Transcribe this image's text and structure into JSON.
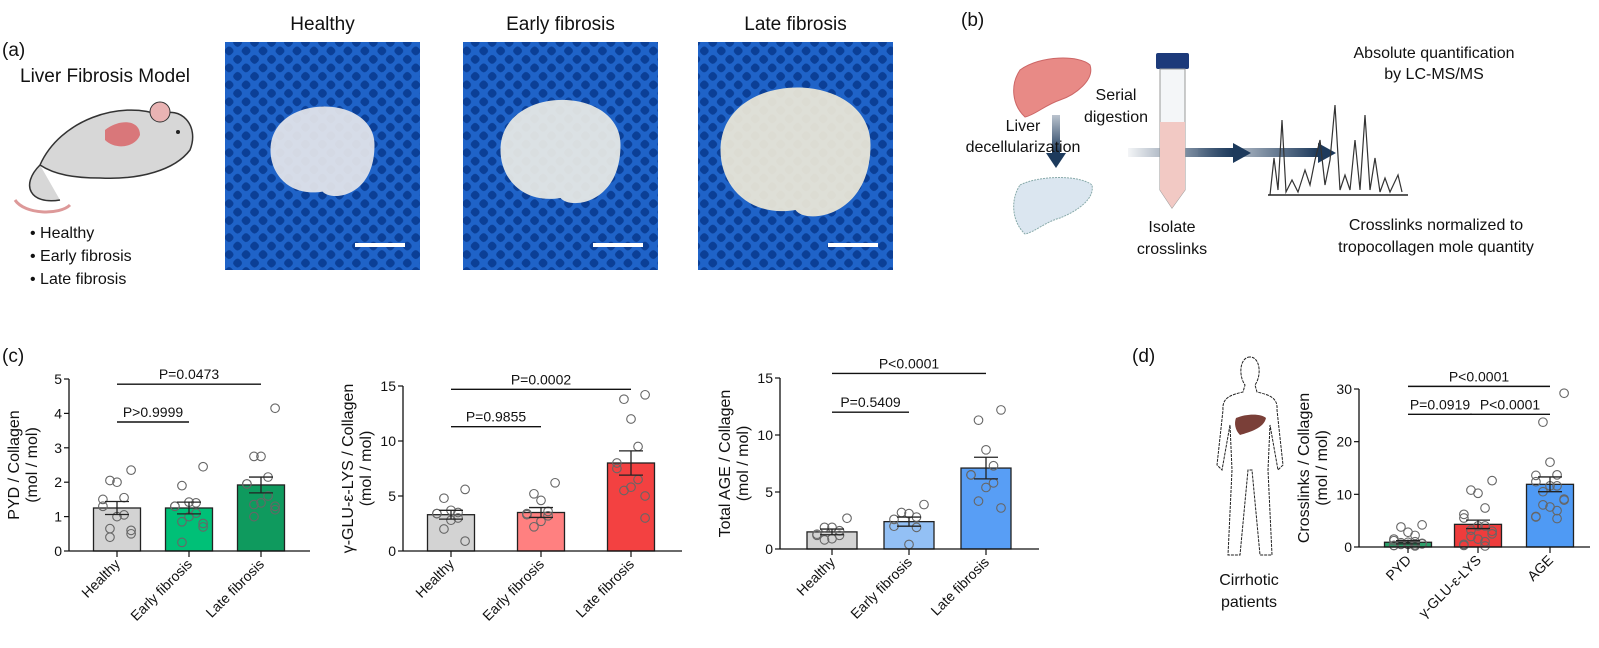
{
  "panel_a": {
    "label": "(a)",
    "model_title": "Liver Fibrosis Model",
    "bullets": [
      "• Healthy",
      "• Early fibrosis",
      "• Late fibrosis"
    ],
    "photo_titles": [
      "Healthy",
      "Early fibrosis",
      "Late fibrosis"
    ]
  },
  "panel_b": {
    "label": "(b)",
    "step1": [
      "Liver",
      "decellularization"
    ],
    "step2": [
      "Serial",
      "digestion"
    ],
    "step3": [
      "Isolate",
      "crosslinks"
    ],
    "step4_top": [
      "Absolute quantification",
      "by LC-MS/MS"
    ],
    "step4_bottom": [
      "Crosslinks normalized to",
      "tropocollagen mole quantity"
    ]
  },
  "panel_c": {
    "label": "(c)"
  },
  "panel_d": {
    "label": "(d)",
    "caption": [
      "Cirrhotic",
      "patients"
    ]
  },
  "chart_data": [
    {
      "type": "bar",
      "ylabel": [
        "PYD / Collagen",
        "(mol / mol)"
      ],
      "categories": [
        "Healthy",
        "Early fibrosis",
        "Late fibrosis"
      ],
      "ylim": [
        0,
        5
      ],
      "yticks": [
        0,
        1,
        2,
        3,
        4,
        5
      ],
      "colors": [
        "#d3d3d3",
        "#00c077",
        "#0f9a5e"
      ],
      "means": [
        1.25,
        1.25,
        1.92
      ],
      "sem": [
        0.19,
        0.17,
        0.23
      ],
      "points": [
        [
          2.35,
          2.05,
          2.0,
          1.55,
          1.5,
          1.3,
          1.05,
          1.0,
          0.65,
          0.6,
          0.5,
          0.4
        ],
        [
          2.45,
          1.9,
          1.42,
          1.4,
          1.3,
          1.3,
          1.1,
          1.0,
          0.85,
          0.8,
          0.7,
          0.25
        ],
        [
          4.15,
          2.75,
          2.75,
          2.15,
          1.95,
          1.95,
          1.6,
          1.4,
          1.35,
          1.3,
          1.2,
          1.0
        ]
      ],
      "comparisons": [
        {
          "from": 0,
          "to": 1,
          "label": "P>0.9999",
          "y": 3.75
        },
        {
          "from": 0,
          "to": 2,
          "label": "P=0.0473",
          "y": 4.85
        }
      ]
    },
    {
      "type": "bar",
      "ylabel": [
        "γ-GLU-ε-LYS / Collagen",
        "(mol / mol)"
      ],
      "categories": [
        "Healthy",
        "Early fibrosis",
        "Late fibrosis"
      ],
      "ylim": [
        0,
        15
      ],
      "yticks": [
        0,
        5,
        10,
        15
      ],
      "colors": [
        "#d3d3d3",
        "#ff8080",
        "#f34141"
      ],
      "means": [
        3.3,
        3.5,
        8.0
      ],
      "sem": [
        0.4,
        0.45,
        1.1
      ],
      "points": [
        [
          5.6,
          4.8,
          3.7,
          3.5,
          3.4,
          3.4,
          3.0,
          2.8,
          2.0,
          0.9
        ],
        [
          6.2,
          5.2,
          4.6,
          3.6,
          3.4,
          3.3,
          3.2,
          2.7,
          2.2
        ],
        [
          14.2,
          13.8,
          12.0,
          9.5,
          8.0,
          7.5,
          6.5,
          5.8,
          5.5,
          5.0,
          3.0
        ]
      ],
      "comparisons": [
        {
          "from": 0,
          "to": 1,
          "label": "P=0.9855",
          "y": 11.3
        },
        {
          "from": 0,
          "to": 2,
          "label": "P=0.0002",
          "y": 14.7
        }
      ]
    },
    {
      "type": "bar",
      "ylabel": [
        "Total AGE / Collagen",
        "(mol / mol)"
      ],
      "categories": [
        "Healthy",
        "Early fibrosis",
        "Late fibrosis"
      ],
      "ylim": [
        0,
        15
      ],
      "yticks": [
        0,
        5,
        10,
        15
      ],
      "colors": [
        "#d3d3d3",
        "#93c0f5",
        "#589ef5"
      ],
      "means": [
        1.5,
        2.4,
        7.1
      ],
      "sem": [
        0.25,
        0.4,
        0.95
      ],
      "points": [
        [
          2.7,
          1.9,
          1.9,
          1.6,
          1.3,
          1.2,
          1.2,
          0.9,
          0.8
        ],
        [
          3.9,
          3.2,
          3.1,
          2.8,
          2.6,
          2.0,
          1.9,
          0.4
        ],
        [
          12.2,
          11.3,
          8.7,
          7.3,
          6.5,
          6.5,
          5.8,
          5.4,
          4.2,
          3.6
        ]
      ],
      "comparisons": [
        {
          "from": 0,
          "to": 1,
          "label": "P=0.5409",
          "y": 12.0
        },
        {
          "from": 0,
          "to": 2,
          "label": "P<0.0001",
          "y": 15.4
        }
      ]
    },
    {
      "type": "bar",
      "ylabel": [
        "Crosslinks / Collagen",
        "(mol / mol)"
      ],
      "categories": [
        "PYD",
        "γ-GLU-ε-LYS",
        "AGE"
      ],
      "ylim": [
        0,
        30
      ],
      "yticks": [
        0,
        10,
        20,
        30
      ],
      "colors": [
        "#2ca06a",
        "#ef3c3c",
        "#4f9af4"
      ],
      "means": [
        0.9,
        4.3,
        11.9
      ],
      "sem": [
        0.3,
        0.8,
        1.4
      ],
      "points": [
        [
          4.2,
          3.8,
          2.8,
          2.2,
          1.5,
          1.2,
          1.0,
          0.9,
          0.8,
          0.7,
          0.6,
          0.5,
          0.5,
          0.4,
          0.3,
          0.3,
          0.2
        ],
        [
          12.6,
          10.8,
          10.2,
          7.4,
          6.2,
          5.5,
          4.0,
          4.0,
          3.2,
          3.0,
          2.5,
          2.0,
          1.5,
          1.0,
          0.5,
          0.3,
          0.2
        ],
        [
          29.2,
          23.7,
          16.1,
          13.7,
          13.6,
          12.4,
          11.6,
          11.6,
          10.5,
          9.1,
          8.9,
          8.0,
          7.6,
          6.9,
          5.8,
          5.7,
          5.4
        ]
      ],
      "comparisons": [
        {
          "from": 0,
          "to": 1,
          "label": "P=0.0919",
          "y": 25.2
        },
        {
          "from": 1,
          "to": 2,
          "label": "P<0.0001",
          "y": 25.2
        },
        {
          "from": 0,
          "to": 2,
          "label": "P<0.0001",
          "y": 30.5
        }
      ]
    }
  ]
}
